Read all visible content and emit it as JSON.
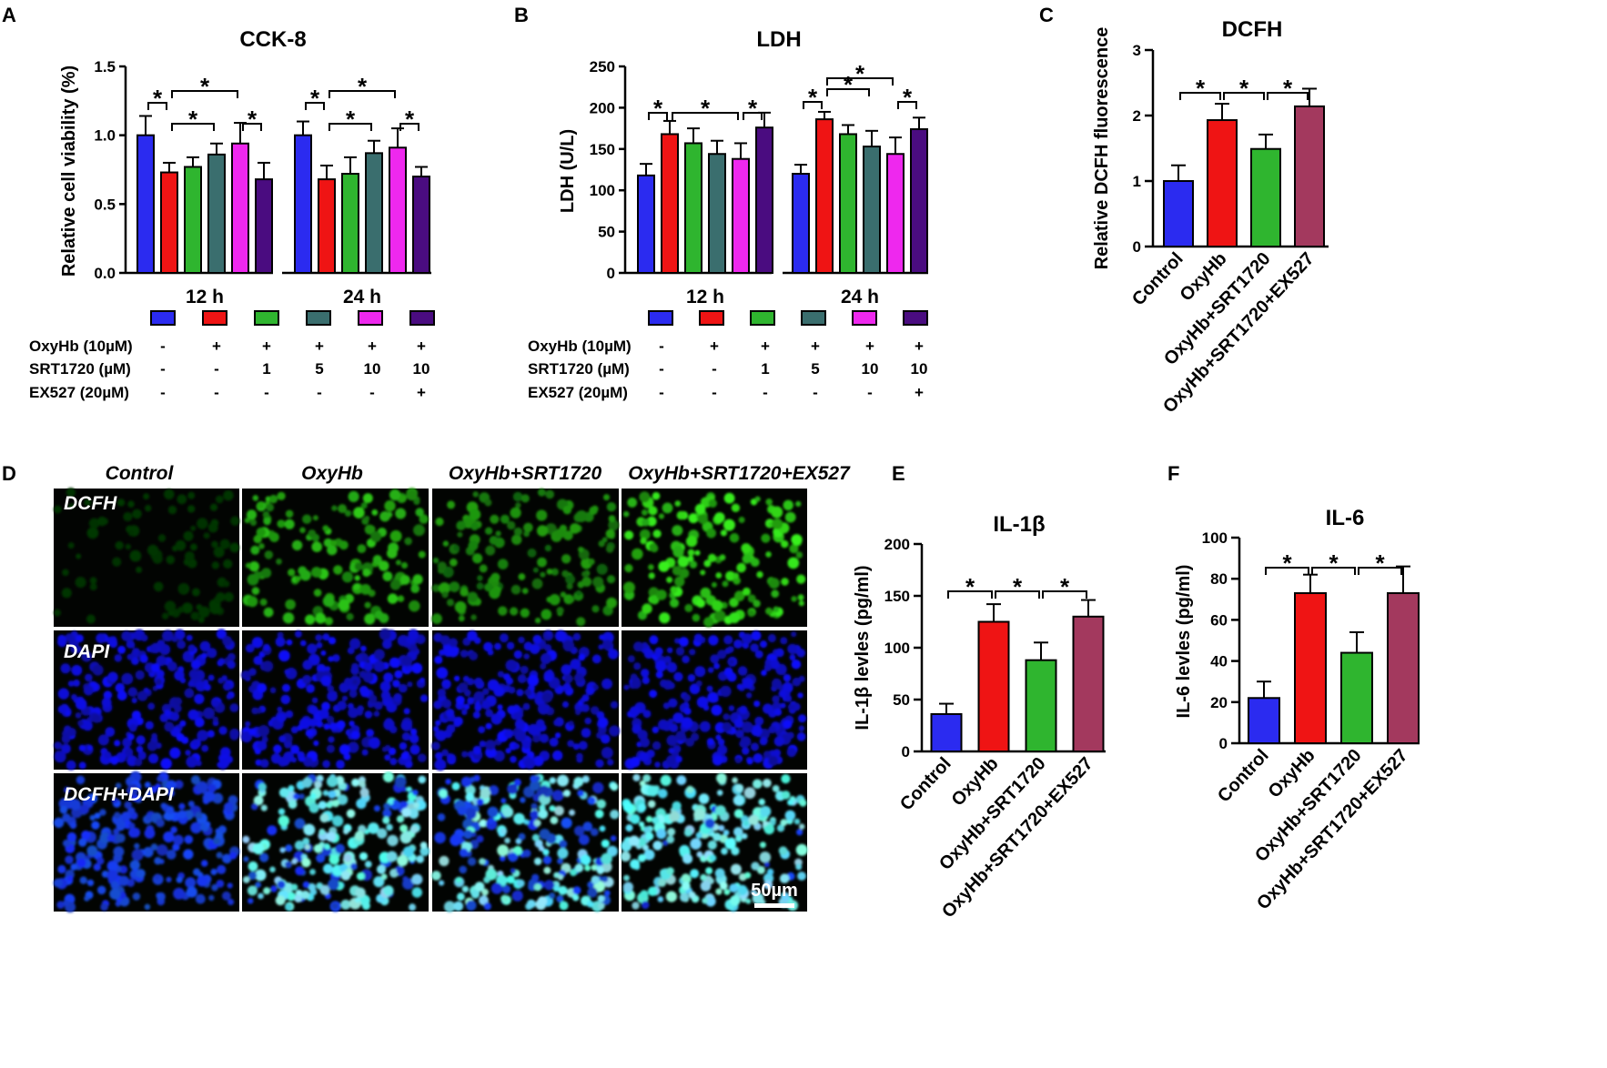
{
  "colors": {
    "blue": "#2b2bf0",
    "red": "#ef1414",
    "green": "#2fb52f",
    "teal": "#3a6e6e",
    "magenta": "#ee28ee",
    "purple": "#4a0c80",
    "maroon": "#a3395e"
  },
  "panels": {
    "A": {
      "letter": "A"
    },
    "B": {
      "letter": "B"
    },
    "C": {
      "letter": "C"
    },
    "D": {
      "letter": "D"
    },
    "E": {
      "letter": "E"
    },
    "F": {
      "letter": "F"
    }
  },
  "conditions": {
    "rows": [
      {
        "label": "OxyHb (10µM)",
        "values": [
          "-",
          "+",
          "+",
          "+",
          "+",
          "+"
        ]
      },
      {
        "label": "SRT1720 (µM)",
        "values": [
          "-",
          "-",
          "1",
          "5",
          "10",
          "10"
        ]
      },
      {
        "label": "EX527 (20µM)",
        "values": [
          "-",
          "-",
          "-",
          "-",
          "-",
          "+"
        ]
      }
    ]
  },
  "chart_data": [
    {
      "id": "A",
      "type": "bar",
      "title": "CCK-8",
      "ylabel": "Relative cell viability (%)",
      "xlabel": "",
      "ylim": [
        0,
        1.5
      ],
      "yticks": [
        "0.0",
        "0.5",
        "1.0",
        "1.5"
      ],
      "groups": [
        "12 h",
        "24 h"
      ],
      "series_colors": [
        "blue",
        "red",
        "green",
        "teal",
        "magenta",
        "purple"
      ],
      "values": [
        [
          1.0,
          0.73,
          0.77,
          0.86,
          0.94,
          0.68
        ],
        [
          1.0,
          0.68,
          0.72,
          0.87,
          0.91,
          0.7
        ]
      ],
      "errors": [
        [
          0.14,
          0.07,
          0.07,
          0.08,
          0.15,
          0.12
        ],
        [
          0.1,
          0.1,
          0.12,
          0.09,
          0.14,
          0.07
        ]
      ],
      "significance": [
        {
          "g": 0,
          "from": 0,
          "to": 1,
          "level": 1,
          "label": "*"
        },
        {
          "g": 0,
          "from": 1,
          "to": 4,
          "level": 2,
          "label": "*"
        },
        {
          "g": 0,
          "from": 1,
          "to": 3,
          "level": 0,
          "label": "*"
        },
        {
          "g": 0,
          "from": 4,
          "to": 5,
          "level": 0,
          "label": "*"
        },
        {
          "g": 1,
          "from": 0,
          "to": 1,
          "level": 1,
          "label": "*"
        },
        {
          "g": 1,
          "from": 1,
          "to": 4,
          "level": 2,
          "label": "*"
        },
        {
          "g": 1,
          "from": 1,
          "to": 3,
          "level": 0,
          "label": "*"
        },
        {
          "g": 1,
          "from": 4,
          "to": 5,
          "level": 0,
          "label": "*"
        }
      ]
    },
    {
      "id": "B",
      "type": "bar",
      "title": "LDH",
      "ylabel": "LDH (U/L)",
      "xlabel": "",
      "ylim": [
        0,
        250
      ],
      "yticks": [
        "0",
        "50",
        "100",
        "150",
        "200",
        "250"
      ],
      "groups": [
        "12 h",
        "24 h"
      ],
      "series_colors": [
        "blue",
        "red",
        "green",
        "teal",
        "magenta",
        "purple"
      ],
      "values": [
        [
          118,
          168,
          157,
          144,
          138,
          176
        ],
        [
          120,
          186,
          168,
          153,
          144,
          174
        ]
      ],
      "errors": [
        [
          14,
          16,
          18,
          16,
          19,
          18
        ],
        [
          11,
          9,
          11,
          19,
          20,
          14
        ]
      ],
      "significance": [
        {
          "g": 0,
          "from": 0,
          "to": 1,
          "level": 0,
          "label": "*"
        },
        {
          "g": 0,
          "from": 1,
          "to": 4,
          "level": 0,
          "label": "*"
        },
        {
          "g": 0,
          "from": 4,
          "to": 5,
          "level": 0,
          "label": "*"
        },
        {
          "g": 1,
          "from": 0,
          "to": 1,
          "level": 0,
          "label": "*"
        },
        {
          "g": 1,
          "from": 1,
          "to": 3,
          "level": 1,
          "label": "*"
        },
        {
          "g": 1,
          "from": 1,
          "to": 4,
          "level": 2,
          "label": "*"
        },
        {
          "g": 1,
          "from": 4,
          "to": 5,
          "level": 0,
          "label": "*"
        }
      ]
    },
    {
      "id": "C",
      "type": "bar",
      "title": "DCFH",
      "ylabel": "Relative DCFH fluorescence",
      "xlabel": "",
      "ylim": [
        0,
        3
      ],
      "yticks": [
        "0",
        "1",
        "2",
        "3"
      ],
      "categories": [
        "Control",
        "OxyHb",
        "OxyHb+SRT1720",
        "OxyHb+SRT1720+EX527"
      ],
      "colors": [
        "blue",
        "red",
        "green",
        "maroon"
      ],
      "values": [
        1.0,
        1.93,
        1.49,
        2.14
      ],
      "errors": [
        0.24,
        0.25,
        0.22,
        0.27
      ],
      "significance": [
        {
          "from": 0,
          "to": 1,
          "label": "*"
        },
        {
          "from": 1,
          "to": 2,
          "label": "*"
        },
        {
          "from": 2,
          "to": 3,
          "label": "*"
        }
      ]
    },
    {
      "id": "E",
      "type": "bar",
      "title": "IL-1β",
      "ylabel": "IL-1β levles  (pg/ml)",
      "xlabel": "",
      "ylim": [
        0,
        200
      ],
      "yticks": [
        "0",
        "50",
        "100",
        "150",
        "200"
      ],
      "categories": [
        "Control",
        "OxyHb",
        "OxyHb+SRT1720",
        "OxyHb+SRT1720+EX527"
      ],
      "colors": [
        "blue",
        "red",
        "green",
        "maroon"
      ],
      "values": [
        36,
        125,
        88,
        130
      ],
      "errors": [
        10,
        17,
        17,
        16
      ],
      "significance": [
        {
          "from": 0,
          "to": 1,
          "label": "*"
        },
        {
          "from": 1,
          "to": 2,
          "label": "*"
        },
        {
          "from": 2,
          "to": 3,
          "label": "*"
        }
      ]
    },
    {
      "id": "F",
      "type": "bar",
      "title": "IL-6",
      "ylabel": "IL-6 levles  (pg/ml)",
      "xlabel": "",
      "ylim": [
        0,
        100
      ],
      "yticks": [
        "0",
        "20",
        "40",
        "60",
        "80",
        "100"
      ],
      "categories": [
        "Control",
        "OxyHb",
        "OxyHb+SRT1720",
        "OxyHb+SRT1720+EX527"
      ],
      "colors": [
        "blue",
        "red",
        "green",
        "maroon"
      ],
      "values": [
        22,
        73,
        44,
        73
      ],
      "errors": [
        8,
        9,
        10,
        13
      ],
      "significance": [
        {
          "from": 0,
          "to": 1,
          "label": "*"
        },
        {
          "from": 1,
          "to": 2,
          "label": "*"
        },
        {
          "from": 2,
          "to": 3,
          "label": "*"
        }
      ]
    }
  ],
  "micrographs": {
    "columns": [
      "Control",
      "OxyHb",
      "OxyHb+SRT1720",
      "OxyHb+SRT1720+EX527"
    ],
    "rows": [
      "DCFH",
      "DAPI",
      "DCFH+DAPI"
    ],
    "scale_bar": "50µm"
  }
}
